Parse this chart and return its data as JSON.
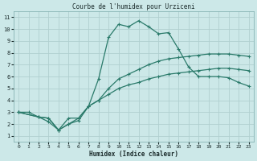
{
  "title": "Courbe de l'humidex pour Urziceni",
  "xlabel": "Humidex (Indice chaleur)",
  "bg_color": "#cce8e8",
  "grid_color": "#b0d0d0",
  "line_color": "#2a7a6a",
  "xlim": [
    -0.5,
    23.5
  ],
  "ylim": [
    0.5,
    11.5
  ],
  "xticks": [
    0,
    1,
    2,
    3,
    4,
    5,
    6,
    7,
    8,
    9,
    10,
    11,
    12,
    13,
    14,
    15,
    16,
    17,
    18,
    19,
    20,
    21,
    22,
    23
  ],
  "yticks": [
    1,
    2,
    3,
    4,
    5,
    6,
    7,
    8,
    9,
    10,
    11
  ],
  "line1_x": [
    0,
    1,
    2,
    3,
    4,
    5,
    6,
    7,
    8,
    9,
    10,
    11,
    12,
    13,
    14,
    15,
    16,
    17,
    18,
    19,
    20,
    21,
    22,
    23
  ],
  "line1_y": [
    3.0,
    3.0,
    2.6,
    2.5,
    1.5,
    2.0,
    2.5,
    3.5,
    5.8,
    9.3,
    10.4,
    10.2,
    10.7,
    10.2,
    9.6,
    9.7,
    8.3,
    6.8,
    6.0,
    6.0,
    6.0,
    5.9,
    5.5,
    5.2
  ],
  "line2_x": [
    0,
    2,
    3,
    4,
    5,
    6,
    7,
    8,
    9,
    10,
    11,
    12,
    13,
    14,
    15,
    16,
    17,
    18,
    19,
    20,
    21,
    22,
    23
  ],
  "line2_y": [
    3.0,
    2.6,
    2.2,
    1.5,
    2.0,
    2.3,
    3.5,
    4.0,
    5.0,
    5.8,
    6.2,
    6.6,
    7.0,
    7.3,
    7.5,
    7.6,
    7.7,
    7.8,
    7.9,
    7.9,
    7.9,
    7.8,
    7.7
  ],
  "line3_x": [
    0,
    2,
    3,
    4,
    5,
    6,
    7,
    8,
    9,
    10,
    11,
    12,
    13,
    14,
    15,
    16,
    17,
    18,
    19,
    20,
    21,
    22,
    23
  ],
  "line3_y": [
    3.0,
    2.6,
    2.5,
    1.5,
    2.5,
    2.5,
    3.5,
    4.0,
    4.5,
    5.0,
    5.3,
    5.5,
    5.8,
    6.0,
    6.2,
    6.3,
    6.4,
    6.5,
    6.6,
    6.7,
    6.7,
    6.6,
    6.5
  ]
}
